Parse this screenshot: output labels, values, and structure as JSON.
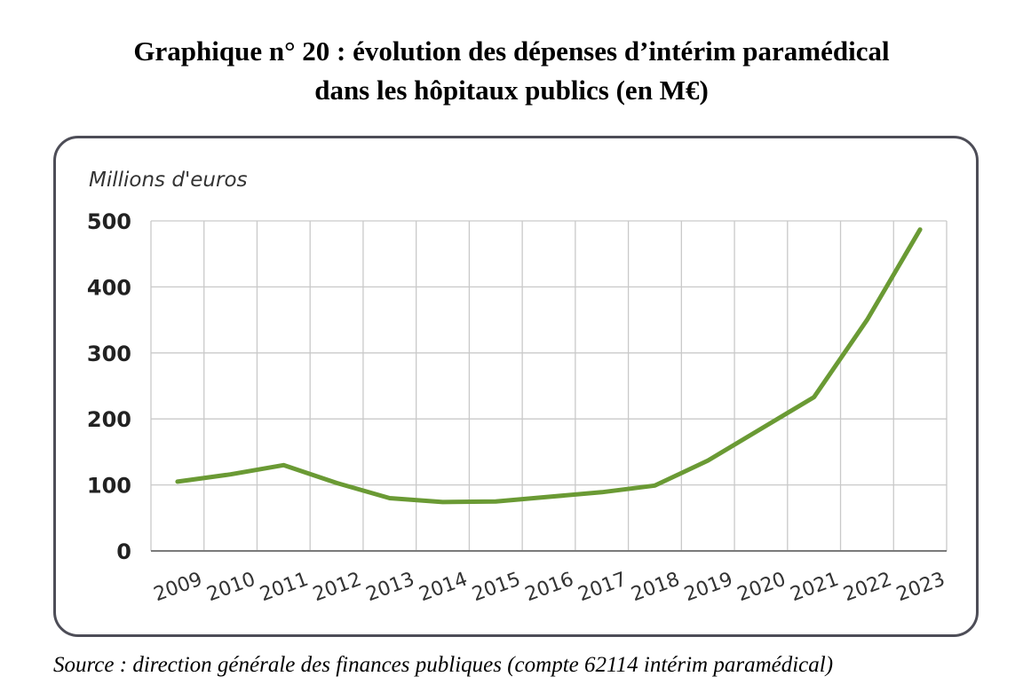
{
  "header": {
    "title_line1": "Graphique n° 20 : évolution des dépenses d’intérim paramédical",
    "title_line2": "dans les hôpitaux publics (en M€)"
  },
  "footer": {
    "source": "Source : direction générale des finances publiques (compte 62114 intérim paramédical)"
  },
  "chart_data": {
    "type": "line",
    "title": "Graphique n° 20 : évolution des dépenses d’intérim paramédical dans les hôpitaux publics (en M€)",
    "ylabel": "Millions d'euros",
    "xlabel": "",
    "x": [
      "2009",
      "2010",
      "2011",
      "2012",
      "2013",
      "2014",
      "2015",
      "2016",
      "2017",
      "2018",
      "2019",
      "2020",
      "2021",
      "2022",
      "2023"
    ],
    "series": [
      {
        "name": "",
        "values": [
          105,
          116,
          130,
          103,
          80,
          74,
          75,
          82,
          89,
          99,
          137,
          185,
          233,
          350,
          487
        ],
        "color": "#6a9a34"
      }
    ],
    "ylim": [
      0,
      500
    ],
    "yticks": [
      0,
      100,
      200,
      300,
      400,
      500
    ],
    "grid": true,
    "legend": "none"
  }
}
